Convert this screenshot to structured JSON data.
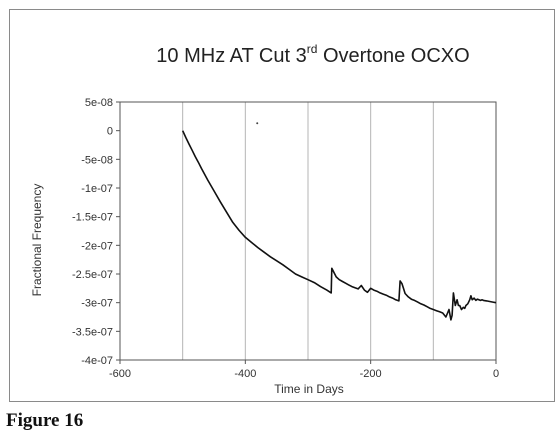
{
  "chart_data": {
    "type": "line",
    "title": "10 MHz AT Cut 3",
    "title_sup": "rd",
    "title_rest": " Overtone OCXO",
    "xlabel": "Time in Days",
    "ylabel": "Fractional Frequency",
    "xlim": [
      -600,
      0
    ],
    "ylim": [
      -4e-07,
      5e-08
    ],
    "x_ticks": [
      -600,
      -400,
      -200,
      0
    ],
    "x_tick_labels": [
      "-600",
      "-400",
      "-200",
      "0"
    ],
    "y_ticks": [
      5e-08,
      0,
      -5e-08,
      -1e-07,
      -1.5e-07,
      -2e-07,
      -2.5e-07,
      -3e-07,
      -3.5e-07,
      -4e-07
    ],
    "y_tick_labels": [
      "5e-08",
      "0",
      "-5e-08",
      "-1e-07",
      "-1.5e-07",
      "-2e-07",
      "-2.5e-07",
      "-3e-07",
      "-3.5e-07",
      "-4e-07"
    ],
    "x_gridlines": [
      -500,
      -400,
      -300,
      -200,
      -100,
      0
    ],
    "grid": true,
    "series": [
      {
        "color": "#111111",
        "x": [
          -500,
          -495,
          -490,
          -485,
          -480,
          -475,
          -470,
          -465,
          -460,
          -450,
          -440,
          -430,
          -420,
          -410,
          -400,
          -390,
          -380,
          -370,
          -360,
          -350,
          -340,
          -330,
          -320,
          -310,
          -300,
          -290,
          -280,
          -270,
          -263,
          -262,
          -255,
          -250,
          -245,
          -240,
          -235,
          -230,
          -225,
          -220,
          -215,
          -210,
          -205,
          -200,
          -195,
          -190,
          -185,
          -180,
          -175,
          -170,
          -165,
          -160,
          -155,
          -153,
          -150,
          -148,
          -145,
          -140,
          -135,
          -130,
          -125,
          -120,
          -115,
          -110,
          -105,
          -100,
          -95,
          -90,
          -85,
          -80,
          -75,
          -72,
          -70,
          -68,
          -65,
          -62,
          -60,
          -58,
          -55,
          -52,
          -50,
          -48,
          -45,
          -42,
          -40,
          -38,
          -35,
          -32,
          -30,
          -27,
          -25,
          -22,
          -20,
          -15,
          -10,
          -5,
          0
        ],
        "y": [
          0,
          -1.2e-08,
          -2.3e-08,
          -3.4e-08,
          -4.5e-08,
          -5.5e-08,
          -6.6e-08,
          -7.6e-08,
          -8.6e-08,
          -1.05e-07,
          -1.24e-07,
          -1.42e-07,
          -1.6e-07,
          -1.74e-07,
          -1.86e-07,
          -1.95e-07,
          -2.04e-07,
          -2.12e-07,
          -2.2e-07,
          -2.27e-07,
          -2.34e-07,
          -2.42e-07,
          -2.5e-07,
          -2.55e-07,
          -2.6e-07,
          -2.65e-07,
          -2.72e-07,
          -2.78e-07,
          -2.83e-07,
          -2.4e-07,
          -2.55e-07,
          -2.6e-07,
          -2.63e-07,
          -2.66e-07,
          -2.69e-07,
          -2.72e-07,
          -2.74e-07,
          -2.76e-07,
          -2.7e-07,
          -2.78e-07,
          -2.82e-07,
          -2.75e-07,
          -2.78e-07,
          -2.8e-07,
          -2.83e-07,
          -2.85e-07,
          -2.87e-07,
          -2.9e-07,
          -2.92e-07,
          -2.95e-07,
          -2.97e-07,
          -2.62e-07,
          -2.67e-07,
          -2.74e-07,
          -2.84e-07,
          -2.9e-07,
          -2.94e-07,
          -2.96e-07,
          -2.99e-07,
          -3.02e-07,
          -3.04e-07,
          -3.07e-07,
          -3.1e-07,
          -3.12e-07,
          -3.14e-07,
          -3.16e-07,
          -3.18e-07,
          -3.25e-07,
          -3.12e-07,
          -3.3e-07,
          -3.22e-07,
          -2.83e-07,
          -3.05e-07,
          -2.95e-07,
          -3.05e-07,
          -3.05e-07,
          -3.12e-07,
          -3.08e-07,
          -3.1e-07,
          -3.05e-07,
          -3.02e-07,
          -2.95e-07,
          -2.88e-07,
          -2.95e-07,
          -2.92e-07,
          -2.96e-07,
          -2.94e-07,
          -2.95e-07,
          -2.96e-07,
          -2.95e-07,
          -2.96e-07,
          -2.97e-07,
          -2.98e-07,
          -2.99e-07,
          -3e-07
        ]
      }
    ],
    "outlier_points": [
      {
        "x": -381,
        "y": 1.3e-08
      }
    ]
  },
  "caption": "Figure 16"
}
